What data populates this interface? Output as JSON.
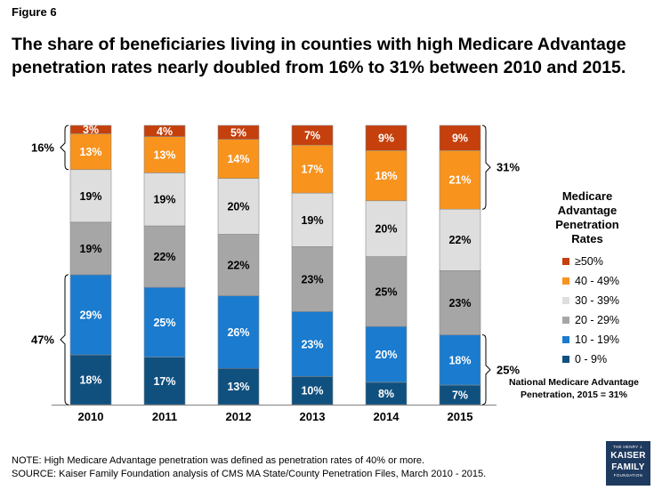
{
  "figure_label": "Figure 6",
  "title": "The share of beneficiaries living in counties with high Medicare Advantage penetration rates nearly doubled from 16% to 31% between 2010 and 2015.",
  "chart_data": {
    "type": "bar",
    "stacked": true,
    "percent_stacked": true,
    "categories": [
      "2010",
      "2011",
      "2012",
      "2013",
      "2014",
      "2015"
    ],
    "series": [
      {
        "name": "0 - 9%",
        "color": "#10507f",
        "label_color": "#ffffff",
        "values": [
          18,
          17,
          13,
          10,
          8,
          7
        ]
      },
      {
        "name": "10 - 19%",
        "color": "#1a7bcf",
        "label_color": "#ffffff",
        "values": [
          29,
          25,
          26,
          23,
          20,
          18
        ]
      },
      {
        "name": "20 - 29%",
        "color": "#a6a6a6",
        "label_color": "#000000",
        "values": [
          19,
          22,
          22,
          23,
          25,
          23
        ]
      },
      {
        "name": "30 - 39%",
        "color": "#dedede",
        "label_color": "#000000",
        "values": [
          19,
          19,
          20,
          19,
          20,
          22
        ]
      },
      {
        "name": "40 - 49%",
        "color": "#f8931e",
        "label_color": "#ffffff",
        "values": [
          13,
          13,
          14,
          17,
          18,
          21
        ]
      },
      {
        "name": "≥50%",
        "color": "#c5400c",
        "label_color": "#ffffff",
        "values": [
          3,
          4,
          5,
          7,
          9,
          9
        ]
      }
    ],
    "legend_title": "Medicare Advantage Penetration Rates",
    "annotations": [
      {
        "text": "16%",
        "category": "2010",
        "side": "left",
        "series_from": "40 - 49%",
        "series_to": "≥50%"
      },
      {
        "text": "47%",
        "category": "2010",
        "side": "left",
        "series_from": "0 - 9%",
        "series_to": "10 - 19%"
      },
      {
        "text": "31%",
        "category": "2015",
        "side": "right",
        "series_from": "40 - 49%",
        "series_to": "≥50%"
      },
      {
        "text": "25%",
        "category": "2015",
        "side": "right",
        "series_from": "0 - 9%",
        "series_to": "10 - 19%"
      }
    ]
  },
  "national_note": [
    "National Medicare Advantage",
    "Penetration, 2015 = 31%"
  ],
  "note_line": "NOTE: High Medicare Advantage penetration was defined as penetration rates of 40% or more.",
  "source_line": "SOURCE: Kaiser Family Foundation analysis of CMS MA State/County Penetration Files, March 2010 - 2015.",
  "logo": {
    "top": "THE HENRY J.",
    "line1": "KAISER",
    "line2": "FAMILY",
    "bottom": "FOUNDATION"
  }
}
